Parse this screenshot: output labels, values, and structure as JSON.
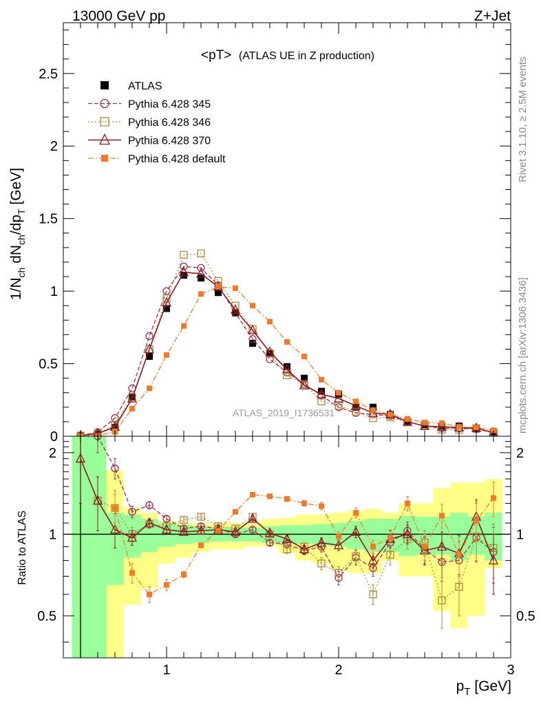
{
  "header": {
    "left": "13000 GeV pp",
    "right": "Z+Jet"
  },
  "side_text": {
    "top": "Rivet 3.1.10, ≥ 2.5M events",
    "bottom": "mcplots.cern.ch [arXiv:1306.3436]"
  },
  "watermark": "ATLAS_2019_I1736531",
  "colors": {
    "atlas": "#000000",
    "p345": "#a02c4a",
    "p346": "#a98a3c",
    "p370": "#8b1a1a",
    "pdefault": "#f07a28",
    "band_green": "#99ff99",
    "band_yellow": "#ffff88"
  },
  "chart_data": [
    {
      "type": "scatter",
      "title_main": "<pT>",
      "title_sub": "(ATLAS UE in Z production)",
      "ylabel": "1/N_ch dN_ch/dp_T [GeV]",
      "xlim": [
        0.4,
        3.0
      ],
      "ylim": [
        0,
        2.85
      ],
      "yticks": [
        "0",
        "0.5",
        "1",
        "1.5",
        "2",
        "2.5"
      ],
      "legend_position": "top-left",
      "series": [
        {
          "name": "ATLAS",
          "style": "atlas",
          "x": [
            0.5,
            0.6,
            0.7,
            0.8,
            0.9,
            1.0,
            1.1,
            1.2,
            1.3,
            1.4,
            1.5,
            1.6,
            1.7,
            1.8,
            1.9,
            2.0,
            2.1,
            2.2,
            2.3,
            2.4,
            2.5,
            2.6,
            2.7,
            2.8,
            2.9
          ],
          "y": [
            0.002,
            0.012,
            0.06,
            0.27,
            0.55,
            0.88,
            1.11,
            1.09,
            0.99,
            0.85,
            0.64,
            0.57,
            0.48,
            0.4,
            0.31,
            0.29,
            0.2,
            0.2,
            0.15,
            0.1,
            0.08,
            0.07,
            0.07,
            0.05,
            0.03
          ]
        },
        {
          "name": "Pythia 6.428 345",
          "style": "p345",
          "x": [
            0.5,
            0.6,
            0.7,
            0.8,
            0.9,
            1.0,
            1.1,
            1.2,
            1.3,
            1.4,
            1.5,
            1.6,
            1.7,
            1.8,
            1.9,
            2.0,
            2.1,
            2.2,
            2.3,
            2.4,
            2.5,
            2.6,
            2.7,
            2.8,
            2.9
          ],
          "y": [
            0.005,
            0.028,
            0.125,
            0.33,
            0.69,
            1.0,
            1.17,
            1.16,
            1.04,
            0.85,
            0.67,
            0.53,
            0.44,
            0.36,
            0.28,
            0.2,
            0.16,
            0.15,
            0.14,
            0.1,
            0.07,
            0.055,
            0.055,
            0.05,
            0.025
          ]
        },
        {
          "name": "Pythia 6.428 346",
          "style": "p346",
          "x": [
            0.5,
            0.6,
            0.7,
            0.8,
            0.9,
            1.0,
            1.1,
            1.2,
            1.3,
            1.4,
            1.5,
            1.6,
            1.7,
            1.8,
            1.9,
            2.0,
            2.1,
            2.2,
            2.3,
            2.4,
            2.5,
            2.6,
            2.7,
            2.8,
            2.9
          ],
          "y": [
            0.004,
            0.02,
            0.075,
            0.27,
            0.6,
            0.95,
            1.25,
            1.26,
            1.07,
            0.9,
            0.74,
            0.57,
            0.42,
            0.36,
            0.24,
            0.21,
            0.17,
            0.125,
            0.13,
            0.095,
            0.075,
            0.045,
            0.045,
            0.055,
            0.025
          ]
        },
        {
          "name": "Pythia 6.428 370",
          "style": "p370",
          "x": [
            0.5,
            0.6,
            0.7,
            0.8,
            0.9,
            1.0,
            1.1,
            1.2,
            1.3,
            1.4,
            1.5,
            1.6,
            1.7,
            1.8,
            1.9,
            2.0,
            2.1,
            2.2,
            2.3,
            2.4,
            2.5,
            2.6,
            2.7,
            2.8,
            2.9
          ],
          "y": [
            0.004,
            0.018,
            0.065,
            0.26,
            0.6,
            0.92,
            1.13,
            1.12,
            1.03,
            0.87,
            0.73,
            0.58,
            0.46,
            0.35,
            0.29,
            0.26,
            0.21,
            0.16,
            0.15,
            0.1,
            0.07,
            0.065,
            0.06,
            0.055,
            0.025
          ]
        },
        {
          "name": "Pythia 6.428 default",
          "style": "pdefault",
          "x": [
            0.5,
            0.6,
            0.7,
            0.8,
            0.9,
            1.0,
            1.1,
            1.2,
            1.3,
            1.4,
            1.5,
            1.6,
            1.7,
            1.8,
            1.9,
            2.0,
            2.1,
            2.2,
            2.3,
            2.4,
            2.5,
            2.6,
            2.7,
            2.8,
            2.9
          ],
          "y": [
            0.001,
            0.006,
            0.03,
            0.19,
            0.33,
            0.56,
            0.76,
            0.98,
            1.03,
            1.02,
            0.9,
            0.79,
            0.65,
            0.55,
            0.39,
            0.3,
            0.24,
            0.18,
            0.15,
            0.12,
            0.095,
            0.09,
            0.065,
            0.06,
            0.04
          ]
        }
      ]
    },
    {
      "type": "scatter",
      "ylabel": "Ratio to ATLAS",
      "xlabel": "p_T [GeV]",
      "xlim": [
        0.4,
        3.0
      ],
      "ylim": [
        0.35,
        2.3
      ],
      "yticks": [
        "0.5",
        "1",
        "2"
      ],
      "xticks": [
        "1",
        "2",
        "3"
      ],
      "band_bins": [
        [
          0.45,
          0.55
        ],
        [
          0.55,
          0.65
        ],
        [
          0.65,
          0.75
        ],
        [
          0.75,
          0.85
        ],
        [
          0.85,
          0.95
        ],
        [
          0.95,
          1.05
        ],
        [
          1.05,
          1.15
        ],
        [
          1.15,
          1.25
        ],
        [
          1.25,
          1.35
        ],
        [
          1.35,
          1.45
        ],
        [
          1.45,
          1.55
        ],
        [
          1.55,
          1.65
        ],
        [
          1.65,
          1.75
        ],
        [
          1.75,
          1.85
        ],
        [
          1.85,
          1.95
        ],
        [
          1.95,
          2.05
        ],
        [
          2.05,
          2.15
        ],
        [
          2.15,
          2.25
        ],
        [
          2.25,
          2.35
        ],
        [
          2.35,
          2.45
        ],
        [
          2.45,
          2.55
        ],
        [
          2.55,
          2.65
        ],
        [
          2.65,
          2.75
        ],
        [
          2.75,
          2.85
        ],
        [
          2.85,
          2.95
        ]
      ],
      "band_green": [
        [
          0.35,
          2.3
        ],
        [
          0.35,
          2.3
        ],
        [
          0.65,
          1.2
        ],
        [
          0.82,
          1.18
        ],
        [
          0.86,
          1.14
        ],
        [
          0.9,
          1.1
        ],
        [
          0.92,
          1.08
        ],
        [
          0.93,
          1.07
        ],
        [
          0.94,
          1.06
        ],
        [
          0.94,
          1.06
        ],
        [
          0.94,
          1.06
        ],
        [
          0.93,
          1.07
        ],
        [
          0.92,
          1.08
        ],
        [
          0.92,
          1.08
        ],
        [
          0.91,
          1.09
        ],
        [
          0.9,
          1.1
        ],
        [
          0.88,
          1.12
        ],
        [
          0.86,
          1.14
        ],
        [
          0.86,
          1.14
        ],
        [
          0.83,
          1.17
        ],
        [
          0.84,
          1.16
        ],
        [
          0.84,
          1.16
        ],
        [
          0.8,
          1.2
        ],
        [
          0.84,
          1.16
        ],
        [
          0.8,
          1.2
        ]
      ],
      "band_yellow": [
        [
          0.35,
          2.3
        ],
        [
          0.35,
          2.3
        ],
        [
          0.35,
          1.72
        ],
        [
          0.55,
          1.25
        ],
        [
          0.63,
          1.2
        ],
        [
          0.78,
          1.12
        ],
        [
          0.82,
          1.1
        ],
        [
          0.86,
          1.1
        ],
        [
          0.88,
          1.1
        ],
        [
          0.88,
          1.1
        ],
        [
          0.9,
          1.1
        ],
        [
          0.9,
          1.14
        ],
        [
          0.85,
          1.15
        ],
        [
          0.8,
          1.18
        ],
        [
          0.78,
          1.18
        ],
        [
          0.74,
          1.2
        ],
        [
          0.72,
          1.22
        ],
        [
          0.72,
          1.24
        ],
        [
          0.8,
          1.2
        ],
        [
          0.7,
          1.3
        ],
        [
          0.7,
          1.3
        ],
        [
          0.52,
          1.48
        ],
        [
          0.45,
          1.55
        ],
        [
          0.5,
          1.55
        ],
        [
          0.75,
          1.6
        ]
      ],
      "series": [
        {
          "name": "Pythia 6.428 345",
          "style": "p345",
          "x": [
            0.6,
            0.7,
            0.8,
            0.9,
            1.0,
            1.1,
            1.2,
            1.3,
            1.4,
            1.5,
            1.6,
            1.7,
            1.8,
            1.9,
            2.0,
            2.1,
            2.2,
            2.3,
            2.4,
            2.5,
            2.6,
            2.7,
            2.8,
            2.9
          ],
          "y": [
            2.3,
            1.75,
            1.21,
            1.28,
            1.14,
            1.05,
            1.07,
            1.05,
            1.0,
            1.04,
            0.93,
            0.92,
            0.87,
            0.9,
            0.69,
            0.82,
            0.75,
            0.93,
            1.03,
            0.88,
            0.79,
            0.8,
            0.97,
            0.86
          ],
          "err": [
            0.3,
            0.15,
            0.06,
            0.04,
            0.03,
            0.02,
            0.02,
            0.02,
            0.02,
            0.02,
            0.02,
            0.03,
            0.03,
            0.04,
            0.04,
            0.05,
            0.05,
            0.07,
            0.08,
            0.1,
            0.12,
            0.14,
            0.18,
            0.2
          ]
        },
        {
          "name": "Pythia 6.428 346",
          "style": "p346",
          "x": [
            0.6,
            0.7,
            0.8,
            0.9,
            1.0,
            1.1,
            1.2,
            1.3,
            1.4,
            1.5,
            1.6,
            1.7,
            1.8,
            1.9,
            2.0,
            2.1,
            2.2,
            2.3,
            2.4,
            2.5,
            2.6,
            2.7,
            2.8,
            2.9
          ],
          "y": [
            1.33,
            1.25,
            1.0,
            1.09,
            1.07,
            1.13,
            1.16,
            1.07,
            1.05,
            1.16,
            1.0,
            0.88,
            0.9,
            0.78,
            0.72,
            0.83,
            0.6,
            0.84,
            0.96,
            0.93,
            0.57,
            0.64,
            0.98,
            0.89
          ],
          "err": [
            0.3,
            0.15,
            0.06,
            0.04,
            0.03,
            0.02,
            0.02,
            0.02,
            0.02,
            0.02,
            0.02,
            0.03,
            0.03,
            0.04,
            0.04,
            0.05,
            0.05,
            0.07,
            0.08,
            0.1,
            0.12,
            0.14,
            0.18,
            0.2
          ]
        },
        {
          "name": "Pythia 6.428 370",
          "style": "p370",
          "x": [
            0.5,
            0.6,
            0.7,
            0.8,
            0.9,
            1.0,
            1.1,
            1.2,
            1.3,
            1.4,
            1.5,
            1.6,
            1.7,
            1.8,
            1.9,
            2.0,
            2.1,
            2.2,
            2.3,
            2.4,
            2.5,
            2.6,
            2.7,
            2.8,
            2.9
          ],
          "y": [
            1.9,
            1.33,
            1.04,
            0.97,
            1.1,
            1.04,
            1.02,
            1.03,
            1.04,
            1.02,
            1.14,
            1.01,
            0.96,
            0.88,
            0.93,
            0.91,
            1.02,
            0.8,
            0.96,
            1.0,
            0.87,
            0.9,
            0.85,
            1.16,
            0.8
          ],
          "err": [
            0.6,
            0.3,
            0.15,
            0.06,
            0.04,
            0.03,
            0.02,
            0.02,
            0.02,
            0.02,
            0.02,
            0.02,
            0.03,
            0.03,
            0.04,
            0.04,
            0.05,
            0.05,
            0.07,
            0.08,
            0.1,
            0.12,
            0.14,
            0.18,
            0.2
          ]
        },
        {
          "name": "Pythia 6.428 default",
          "style": "pdefault",
          "x": [
            0.7,
            0.8,
            0.9,
            1.0,
            1.1,
            1.2,
            1.3,
            1.4,
            1.5,
            1.6,
            1.7,
            1.8,
            1.9,
            2.0,
            2.1,
            2.2,
            2.3,
            2.4,
            2.5,
            2.6,
            2.7,
            2.8,
            2.9
          ],
          "y": [
            1.25,
            0.72,
            0.6,
            0.65,
            0.71,
            0.91,
            1.03,
            1.21,
            1.4,
            1.38,
            1.35,
            1.3,
            1.27,
            0.98,
            1.2,
            0.9,
            0.97,
            1.3,
            0.9,
            1.17,
            0.84,
            1.12,
            1.36
          ],
          "err": [
            0.2,
            0.06,
            0.04,
            0.03,
            0.02,
            0.02,
            0.02,
            0.02,
            0.02,
            0.02,
            0.03,
            0.03,
            0.04,
            0.04,
            0.05,
            0.05,
            0.07,
            0.08,
            0.1,
            0.12,
            0.14,
            0.18,
            0.2
          ]
        }
      ]
    }
  ]
}
